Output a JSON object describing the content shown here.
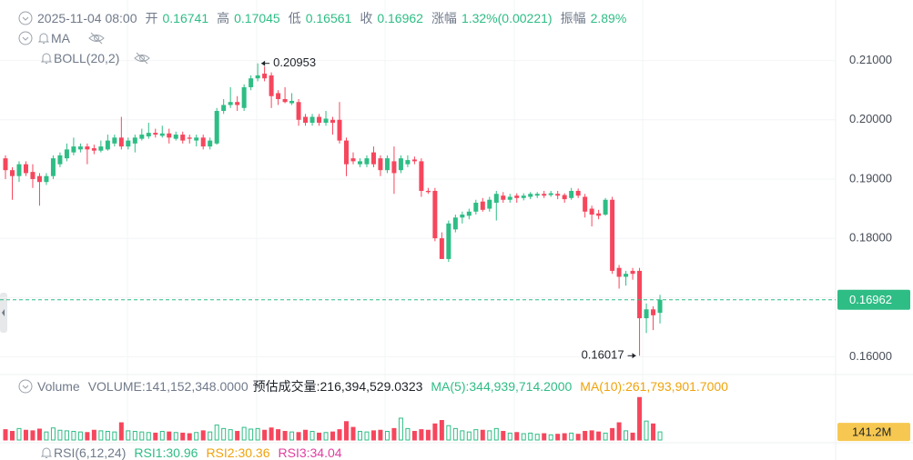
{
  "chart_data": {
    "type": "candlestick",
    "header": {
      "time": "2025-11-04 08:00",
      "open_label": "开",
      "open": "0.16741",
      "high_label": "高",
      "high": "0.17045",
      "low_label": "低",
      "low": "0.16561",
      "close_label": "收",
      "close": "0.16962",
      "change_label": "涨幅",
      "change": "1.32%(0.00221)",
      "amplitude_label": "振幅",
      "amplitude": "2.89%"
    },
    "indicators": {
      "ma": "MA",
      "boll": "BOLL(20,2)"
    },
    "up_color": "#2ebd85",
    "down_color": "#f6465d",
    "candles": [
      [
        0.1935,
        0.194,
        0.19,
        0.1915
      ],
      [
        0.1915,
        0.192,
        0.1865,
        0.1905
      ],
      [
        0.1905,
        0.193,
        0.1895,
        0.1925
      ],
      [
        0.1925,
        0.193,
        0.1905,
        0.191
      ],
      [
        0.1912,
        0.1925,
        0.1885,
        0.19
      ],
      [
        0.1905,
        0.191,
        0.1855,
        0.1895
      ],
      [
        0.1895,
        0.191,
        0.189,
        0.1905
      ],
      [
        0.1905,
        0.194,
        0.19,
        0.1935
      ],
      [
        0.1925,
        0.1945,
        0.192,
        0.194
      ],
      [
        0.1935,
        0.196,
        0.193,
        0.195
      ],
      [
        0.1945,
        0.197,
        0.194,
        0.1955
      ],
      [
        0.195,
        0.196,
        0.1945,
        0.1955
      ],
      [
        0.1955,
        0.196,
        0.1925,
        0.195
      ],
      [
        0.1952,
        0.1958,
        0.1942,
        0.1948
      ],
      [
        0.1948,
        0.1965,
        0.1945,
        0.1955
      ],
      [
        0.195,
        0.1975,
        0.1948,
        0.1965
      ],
      [
        0.196,
        0.1975,
        0.1955,
        0.197
      ],
      [
        0.197,
        0.2005,
        0.195,
        0.1955
      ],
      [
        0.1955,
        0.197,
        0.195,
        0.1965
      ],
      [
        0.196,
        0.1975,
        0.1945,
        0.197
      ],
      [
        0.1968,
        0.1985,
        0.1965,
        0.1975
      ],
      [
        0.1972,
        0.1995,
        0.1968,
        0.1978
      ],
      [
        0.1978,
        0.1985,
        0.197,
        0.1975
      ],
      [
        0.1973,
        0.199,
        0.197,
        0.1977
      ],
      [
        0.1977,
        0.1985,
        0.196,
        0.197
      ],
      [
        0.1968,
        0.198,
        0.1965,
        0.1975
      ],
      [
        0.1975,
        0.198,
        0.196,
        0.1965
      ],
      [
        0.197,
        0.1975,
        0.196,
        0.1968
      ],
      [
        0.1965,
        0.1975,
        0.1955,
        0.197
      ],
      [
        0.197,
        0.1975,
        0.195,
        0.1955
      ],
      [
        0.1955,
        0.197,
        0.195,
        0.1965
      ],
      [
        0.196,
        0.202,
        0.1958,
        0.2015
      ],
      [
        0.2015,
        0.2035,
        0.201,
        0.2025
      ],
      [
        0.2025,
        0.2055,
        0.202,
        0.203
      ],
      [
        0.203,
        0.204,
        0.2015,
        0.2025
      ],
      [
        0.202,
        0.206,
        0.2015,
        0.2055
      ],
      [
        0.2055,
        0.2075,
        0.205,
        0.207
      ],
      [
        0.207,
        0.20953,
        0.2065,
        0.2075
      ],
      [
        0.2078,
        0.209,
        0.2065,
        0.207
      ],
      [
        0.2075,
        0.208,
        0.202,
        0.204
      ],
      [
        0.2045,
        0.205,
        0.2025,
        0.2035
      ],
      [
        0.2035,
        0.2055,
        0.2028,
        0.203
      ],
      [
        0.2028,
        0.2045,
        0.2025,
        0.2032
      ],
      [
        0.203,
        0.2035,
        0.199,
        0.2
      ],
      [
        0.2005,
        0.201,
        0.199,
        0.1995
      ],
      [
        0.1995,
        0.201,
        0.199,
        0.2005
      ],
      [
        0.2005,
        0.201,
        0.199,
        0.1995
      ],
      [
        0.1995,
        0.2015,
        0.199,
        0.2002
      ],
      [
        0.2,
        0.2005,
        0.1975,
        0.1995
      ],
      [
        0.2,
        0.203,
        0.196,
        0.1965
      ],
      [
        0.1965,
        0.197,
        0.1905,
        0.1925
      ],
      [
        0.1935,
        0.1945,
        0.1925,
        0.193
      ],
      [
        0.1925,
        0.1935,
        0.192,
        0.193
      ],
      [
        0.1925,
        0.194,
        0.192,
        0.1935
      ],
      [
        0.1945,
        0.1955,
        0.192,
        0.1925
      ],
      [
        0.1935,
        0.194,
        0.1905,
        0.1915
      ],
      [
        0.1915,
        0.194,
        0.191,
        0.1935
      ],
      [
        0.193,
        0.1955,
        0.1875,
        0.191
      ],
      [
        0.1915,
        0.194,
        0.191,
        0.1935
      ],
      [
        0.1925,
        0.194,
        0.192,
        0.1932
      ],
      [
        0.1933,
        0.1938,
        0.1925,
        0.193
      ],
      [
        0.193,
        0.1935,
        0.187,
        0.188
      ],
      [
        0.188,
        0.1885,
        0.1875,
        0.1878
      ],
      [
        0.188,
        0.1885,
        0.1795,
        0.18
      ],
      [
        0.18,
        0.181,
        0.1765,
        0.1765
      ],
      [
        0.1765,
        0.183,
        0.176,
        0.1825
      ],
      [
        0.1815,
        0.184,
        0.181,
        0.1835
      ],
      [
        0.1835,
        0.1845,
        0.1825,
        0.184
      ],
      [
        0.1838,
        0.185,
        0.1832,
        0.1845
      ],
      [
        0.1845,
        0.1865,
        0.184,
        0.186
      ],
      [
        0.1862,
        0.1868,
        0.1845,
        0.1848
      ],
      [
        0.185,
        0.187,
        0.1845,
        0.1865
      ],
      [
        0.186,
        0.188,
        0.183,
        0.1875
      ],
      [
        0.1872,
        0.1878,
        0.186,
        0.1865
      ],
      [
        0.1865,
        0.1875,
        0.186,
        0.187
      ],
      [
        0.1872,
        0.1876,
        0.186,
        0.1868
      ],
      [
        0.1868,
        0.1876,
        0.1864,
        0.1872
      ],
      [
        0.187,
        0.1878,
        0.1866,
        0.1875
      ],
      [
        0.1872,
        0.1878,
        0.1868,
        0.1875
      ],
      [
        0.1875,
        0.188,
        0.1868,
        0.1872
      ],
      [
        0.1873,
        0.188,
        0.187,
        0.1876
      ],
      [
        0.1875,
        0.188,
        0.1866,
        0.1872
      ],
      [
        0.1873,
        0.1876,
        0.186,
        0.1866
      ],
      [
        0.1868,
        0.1885,
        0.1865,
        0.188
      ],
      [
        0.188,
        0.1884,
        0.1868,
        0.1872
      ],
      [
        0.187,
        0.1875,
        0.1835,
        0.1845
      ],
      [
        0.185,
        0.1855,
        0.182,
        0.184
      ],
      [
        0.1842,
        0.1848,
        0.1832,
        0.1838
      ],
      [
        0.184,
        0.1868,
        0.1838,
        0.1865
      ],
      [
        0.1865,
        0.187,
        0.174,
        0.1745
      ],
      [
        0.175,
        0.1755,
        0.1715,
        0.1735
      ],
      [
        0.1735,
        0.1745,
        0.172,
        0.174
      ],
      [
        0.1745,
        0.175,
        0.173,
        0.174
      ],
      [
        0.1745,
        0.175,
        0.16017,
        0.1665
      ],
      [
        0.1665,
        0.169,
        0.164,
        0.168
      ],
      [
        0.168,
        0.1685,
        0.1645,
        0.167
      ],
      [
        0.16741,
        0.17045,
        0.16561,
        0.16962
      ]
    ],
    "ylim": [
      0.1573,
      0.219
    ],
    "yticks": [
      {
        "value": 0.16,
        "label": "0.16000"
      },
      {
        "value": 0.17,
        "label": "0.17000"
      },
      {
        "value": 0.18,
        "label": "0.18000"
      },
      {
        "value": 0.19,
        "label": "0.19000"
      },
      {
        "value": 0.2,
        "label": "0.20000"
      },
      {
        "value": 0.21,
        "label": "0.21000"
      }
    ],
    "grid": true,
    "current_price": {
      "value": 0.16962,
      "label": "0.16962"
    },
    "max_annotation": 0.20953,
    "min_annotation": 0.16017,
    "volume": {
      "title": "Volume",
      "readout": "VOLUME:141,152,348.0000",
      "estimate": "预估成交量:216,394,529.0323",
      "ma5": "MA(5):344,939,714.2000",
      "ma10": "MA(10):261,793,901.7000",
      "values": [
        180,
        150,
        200,
        170,
        160,
        190,
        140,
        210,
        170,
        160,
        150,
        140,
        130,
        170,
        160,
        150,
        140,
        300,
        160,
        150,
        140,
        130,
        120,
        150,
        140,
        130,
        120,
        110,
        130,
        160,
        140,
        260,
        200,
        180,
        150,
        220,
        190,
        200,
        170,
        210,
        180,
        150,
        140,
        130,
        170,
        150,
        120,
        130,
        140,
        180,
        320,
        220,
        150,
        140,
        160,
        170,
        150,
        200,
        380,
        200,
        150,
        180,
        170,
        280,
        340,
        250,
        200,
        160,
        140,
        180,
        170,
        160,
        200,
        150,
        120,
        130,
        110,
        120,
        100,
        110,
        90,
        100,
        110,
        120,
        100,
        150,
        160,
        140,
        120,
        200,
        300,
        160,
        120,
        740,
        330,
        280,
        141.152348
      ],
      "ylim": [
        0,
        760
      ],
      "current": {
        "value": 141.152348,
        "label": "141.2M"
      }
    },
    "rsi": {
      "title": "RSI(6,12,24)",
      "rsi1": "RSI1:30.96",
      "rsi2": "RSI2:30.36",
      "rsi3": "RSI3:34.04"
    }
  }
}
